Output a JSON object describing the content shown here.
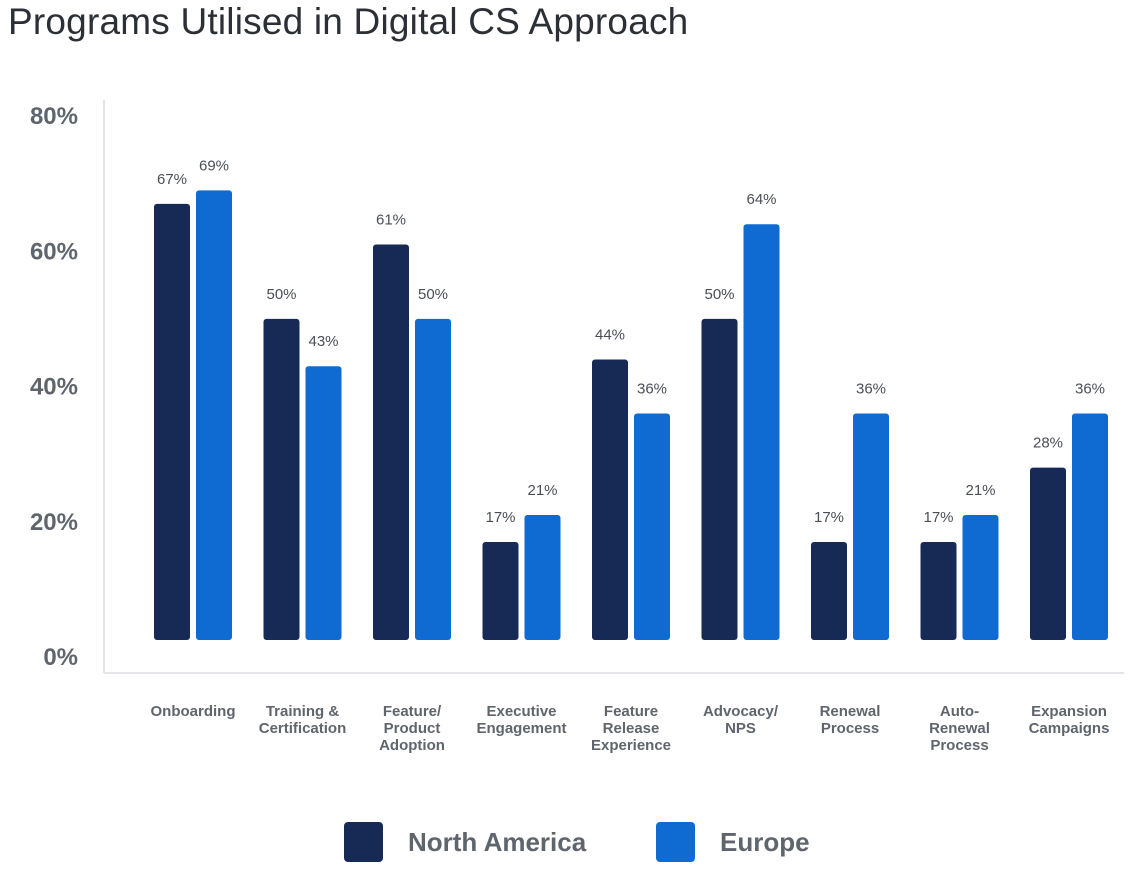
{
  "chart_data": {
    "type": "bar",
    "title": "Programs Utilised in Digital CS Approach",
    "xlabel": "",
    "ylabel": "",
    "ylim": [
      0,
      80
    ],
    "yticks": [
      0,
      20,
      40,
      60,
      80
    ],
    "ytick_labels": [
      "0%",
      "20%",
      "40%",
      "60%",
      "80%"
    ],
    "categories": [
      [
        "Onboarding"
      ],
      [
        "Training &",
        "Certification"
      ],
      [
        "Feature/",
        "Product",
        "Adoption"
      ],
      [
        "Executive",
        "Engagement"
      ],
      [
        "Feature",
        "Release",
        "Experience"
      ],
      [
        "Advocacy/",
        "NPS"
      ],
      [
        "Renewal",
        "Process"
      ],
      [
        "Auto-",
        "Renewal",
        "Process"
      ],
      [
        "Expansion",
        "Campaigns"
      ]
    ],
    "series": [
      {
        "name": "North America",
        "color": "#172a56",
        "values": [
          67,
          50,
          61,
          17,
          44,
          50,
          17,
          17,
          28
        ],
        "labels": [
          "67%",
          "50%",
          "61%",
          "17%",
          "44%",
          "50%",
          "17%",
          "17%",
          "28%"
        ]
      },
      {
        "name": "Europe",
        "color": "#0f6bd1",
        "values": [
          69,
          43,
          50,
          21,
          36,
          64,
          36,
          21,
          36
        ],
        "labels": [
          "69%",
          "43%",
          "50%",
          "21%",
          "36%",
          "64%",
          "36%",
          "21%",
          "36%"
        ]
      }
    ],
    "legend_position": "bottom-center",
    "grid": false
  }
}
